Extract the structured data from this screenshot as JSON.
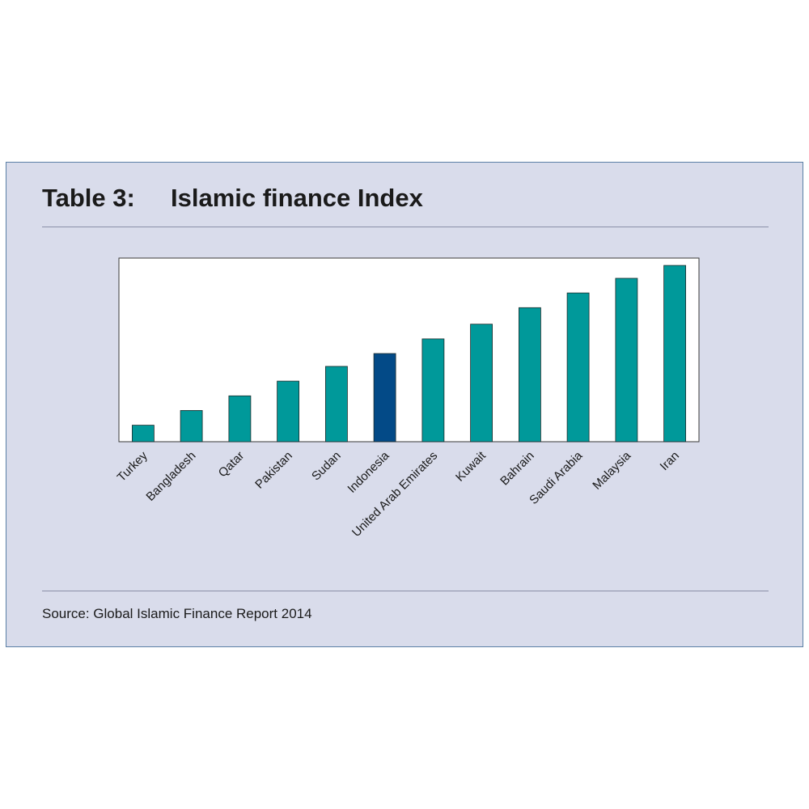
{
  "header": {
    "table_number": "Table 3:",
    "title": "Islamic finance Index"
  },
  "source": "Source: Global Islamic Finance Report 2014",
  "colors": {
    "bar": "#00999a",
    "highlight": "#034a87",
    "background": "#d9dceb",
    "plot_background": "#ffffff"
  },
  "chart_data": {
    "type": "bar",
    "title": "Islamic finance Index",
    "xlabel": "",
    "ylabel": "",
    "categories": [
      "Turkey",
      "Bangladesh",
      "Qatar",
      "Pakistan",
      "Sudan",
      "Indonesia",
      "United Arab Emirates",
      "Kuwait",
      "Bahrain",
      "Saudi Arabia",
      "Malaysia",
      "Iran"
    ],
    "values": [
      9,
      17,
      25,
      33,
      41,
      48,
      56,
      64,
      73,
      81,
      89,
      96
    ],
    "highlight_category": "Indonesia",
    "ylim": [
      0,
      100
    ],
    "grid": false,
    "legend": "none"
  }
}
